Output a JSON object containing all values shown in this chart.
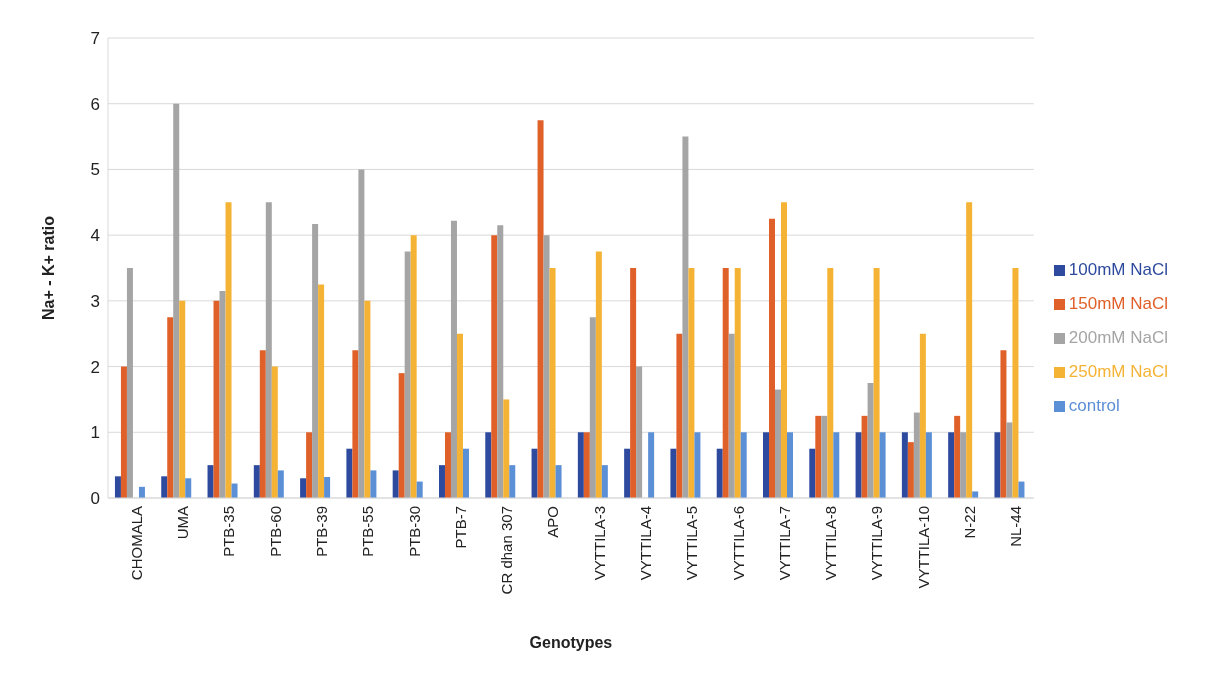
{
  "chart_data": {
    "type": "bar",
    "xlabel": "Genotypes",
    "ylabel": "Na+ - K+ ratio",
    "categories": [
      "CHOMALA",
      "UMA",
      "PTB-35",
      "PTB-60",
      "PTB-39",
      "PTB-55",
      "PTB-30",
      "PTB-7",
      "CR dhan 307",
      "APO",
      "VYTTILA-3",
      "VYTTILA-4",
      "VYTTILA-5",
      "VYTTILA-6",
      "VYTTILA-7",
      "VYTTILA-8",
      "VYTTILA-9",
      "VYTTILA-10",
      "N-22",
      "NL-44"
    ],
    "series": [
      {
        "name": "100mM NaCl",
        "color": "#2e4a9e",
        "values": [
          0.33,
          0.33,
          0.5,
          0.5,
          0.3,
          0.75,
          0.42,
          0.5,
          1.0,
          0.75,
          1.0,
          0.75,
          0.75,
          0.75,
          1.0,
          0.75,
          1.0,
          1.0,
          1.0,
          1.0
        ]
      },
      {
        "name": "150mM NaCl",
        "color": "#e0602a",
        "values": [
          2.0,
          2.75,
          3.0,
          2.25,
          1.0,
          2.25,
          1.9,
          1.0,
          4.0,
          5.75,
          1.0,
          3.5,
          2.5,
          3.5,
          4.25,
          1.25,
          1.25,
          0.85,
          1.25,
          2.25
        ]
      },
      {
        "name": "200mM NaCl",
        "color": "#a5a5a5",
        "values": [
          3.5,
          6.0,
          3.15,
          4.5,
          4.17,
          5.0,
          3.75,
          4.22,
          4.15,
          4.0,
          2.75,
          2.0,
          5.5,
          2.5,
          1.65,
          1.25,
          1.75,
          1.3,
          1.0,
          1.15
        ]
      },
      {
        "name": "250mM NaCl",
        "color": "#f5b335",
        "values": [
          0,
          3.0,
          4.5,
          2.0,
          3.25,
          3.0,
          4.0,
          2.5,
          1.5,
          3.5,
          3.75,
          0,
          3.5,
          3.5,
          4.5,
          3.5,
          3.5,
          2.5,
          4.5,
          3.5
        ]
      },
      {
        "name": "control",
        "color": "#5b8fd6",
        "values": [
          0.17,
          0.3,
          0.22,
          0.42,
          0.32,
          0.42,
          0.25,
          0.75,
          0.5,
          0.5,
          0.5,
          1.0,
          1.0,
          1.0,
          1.0,
          1.0,
          1.0,
          1.0,
          0.1,
          0.25
        ]
      }
    ],
    "ylim": [
      0,
      7
    ],
    "yticks": [
      0,
      1,
      2,
      3,
      4,
      5,
      6,
      7
    ],
    "grid": "y",
    "legend": "right"
  }
}
